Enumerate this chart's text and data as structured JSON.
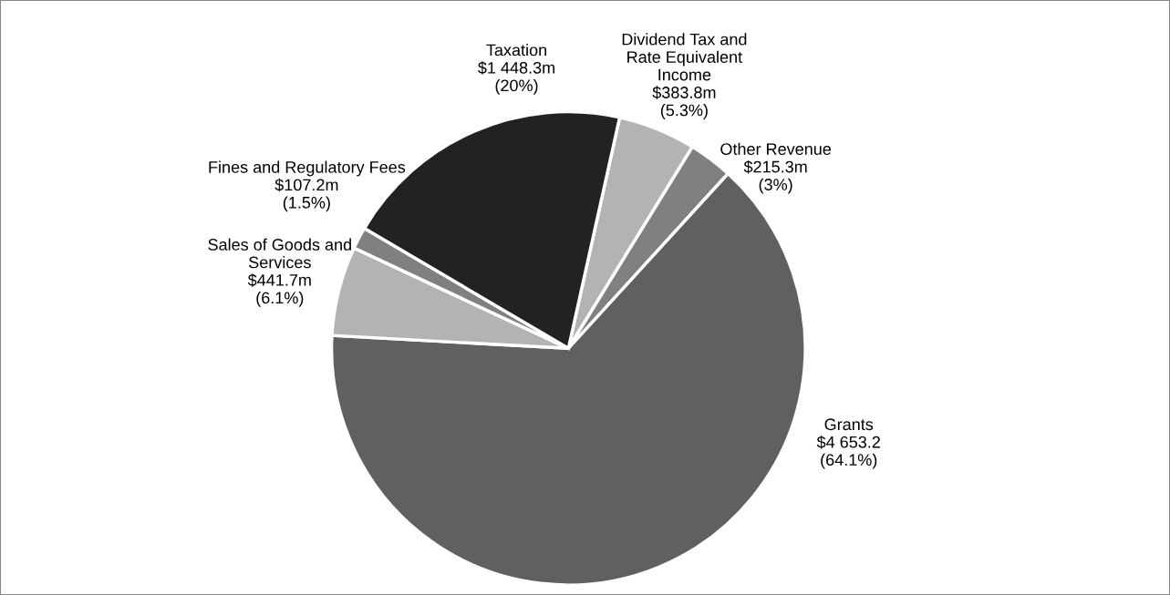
{
  "chart_data": {
    "type": "pie",
    "categories": [
      "Dividend Tax and\nRate Equivalent\nIncome",
      "Other Revenue",
      "Grants",
      "Sales of Goods and\nServices",
      "Fines and Regulatory Fees",
      "Taxation"
    ],
    "values": [
      5.3,
      3,
      64.1,
      6.1,
      1.5,
      20
    ],
    "value_labels": [
      "$383.8m\n(5.3%)",
      "$215.3m\n(3%)",
      "$4 653.2\n(64.1%)",
      "$441.7m\n(6.1%)",
      "$107.2m\n(1.5%)",
      "$1 448.3m\n(20%)"
    ],
    "colors": [
      "#b3b3b3",
      "#808080",
      "#606060",
      "#b3b3b3",
      "#808080",
      "#222222"
    ],
    "legend": false
  }
}
